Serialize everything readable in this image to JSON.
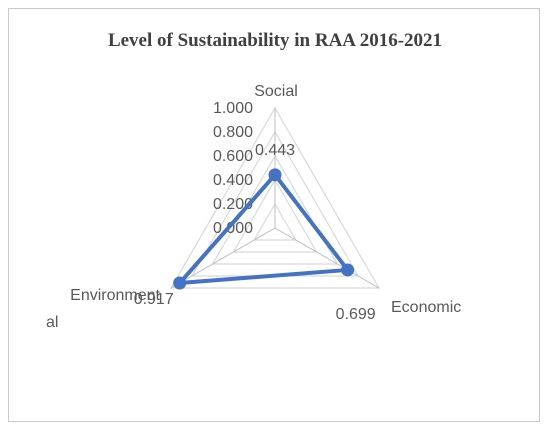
{
  "chart_data": {
    "type": "radar",
    "title": "Level of Sustainability in RAA 2016-2021",
    "axes": [
      "Social",
      "Economic",
      "Environment al"
    ],
    "axis_label_lines": [
      [
        "Social"
      ],
      [
        "Economic"
      ],
      [
        "Environment",
        "al"
      ]
    ],
    "values": [
      0.443,
      0.699,
      0.917
    ],
    "value_labels": [
      "0.443",
      "0.699",
      "0.917"
    ],
    "ticks": [
      "0.000",
      "0.200",
      "0.400",
      "0.600",
      "0.800",
      "1.000"
    ],
    "range": [
      0,
      1
    ],
    "series_color": "#4472c4",
    "grid_color": "#d9d9d9",
    "grid": true,
    "legend": false
  }
}
